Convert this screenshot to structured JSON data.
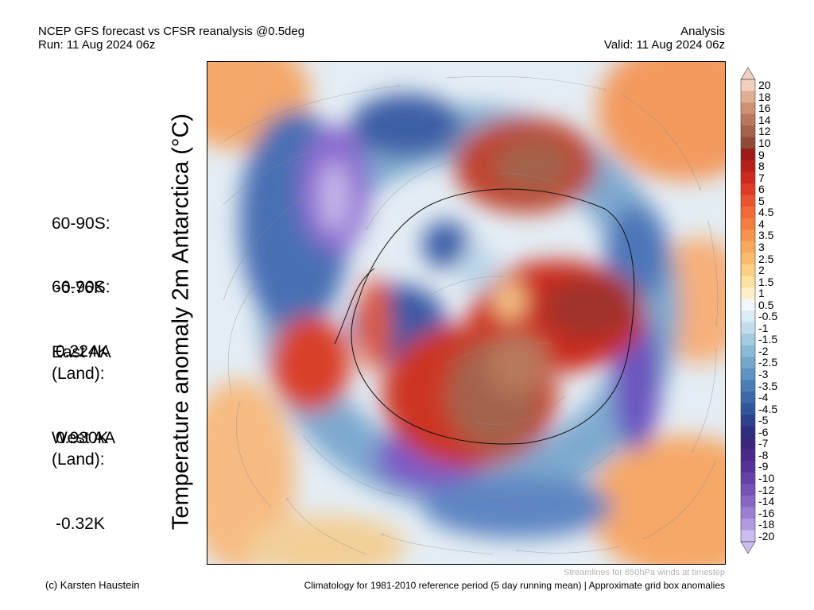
{
  "header": {
    "title": "NCEP GFS forecast vs CFSR reanalysis @0.5deg",
    "run": "Run: 11 Aug 2024 06z",
    "type": "Analysis",
    "valid": "Valid: 11 Aug 2024 06z"
  },
  "stats": [
    {
      "label": "60-90S:",
      "value": "-0.76K"
    },
    {
      "label": "66-90S:",
      "value": "0.224K"
    },
    {
      "label": "East AA\n(Land):",
      "value": "0.930K"
    },
    {
      "label": "West AA\n(Land):",
      "value": "-0.32K"
    }
  ],
  "y_axis_label": "Temperature anomaly 2m Antarctica (°C)",
  "colorbar": {
    "unit": "°C",
    "levels": [
      "20",
      "18",
      "16",
      "14",
      "12",
      "10",
      "9",
      "8",
      "7",
      "6",
      "5",
      "4.5",
      "4",
      "3.5",
      "3",
      "2.5",
      "2",
      "1.5",
      "1",
      "0.5",
      "-0.5",
      "-1",
      "-1.5",
      "-2",
      "-2.5",
      "-3",
      "-3.5",
      "-4",
      "-4.5",
      "-5",
      "-6",
      "-7",
      "-8",
      "-9",
      "-10",
      "-12",
      "-14",
      "-16",
      "-18",
      "-20"
    ],
    "colors": [
      "#f2d0c0",
      "#dfae93",
      "#cd9273",
      "#b8785c",
      "#a4624b",
      "#8f4a39",
      "#9c1c17",
      "#b5201b",
      "#cc2a1f",
      "#de3b24",
      "#e95430",
      "#ef6a38",
      "#f27e42",
      "#f6944e",
      "#f8a85b",
      "#fbbb6c",
      "#fcd084",
      "#fde2a2",
      "#fef0c8",
      "#f4f8fb",
      "#dcecf6",
      "#c1dceb",
      "#a5cbe0",
      "#8abad6",
      "#73a8cc",
      "#5d94c2",
      "#4a7fb6",
      "#3c6aa9",
      "#33559b",
      "#2e418c",
      "#2f2f7f",
      "#3a277a",
      "#482a8a",
      "#553296",
      "#6541a6",
      "#7653b6",
      "#8766c4",
      "#9a7ed2",
      "#b19ae0",
      "#cbbcef"
    ]
  },
  "footer": {
    "streamlines_note": "Streamlines for 850hPa winds at timestep",
    "credit": "(c) Karsten Haustein",
    "climatology": "Climatology for 1981-2010 reference period (5 day running mean) | Approximate grid box anomalies"
  }
}
